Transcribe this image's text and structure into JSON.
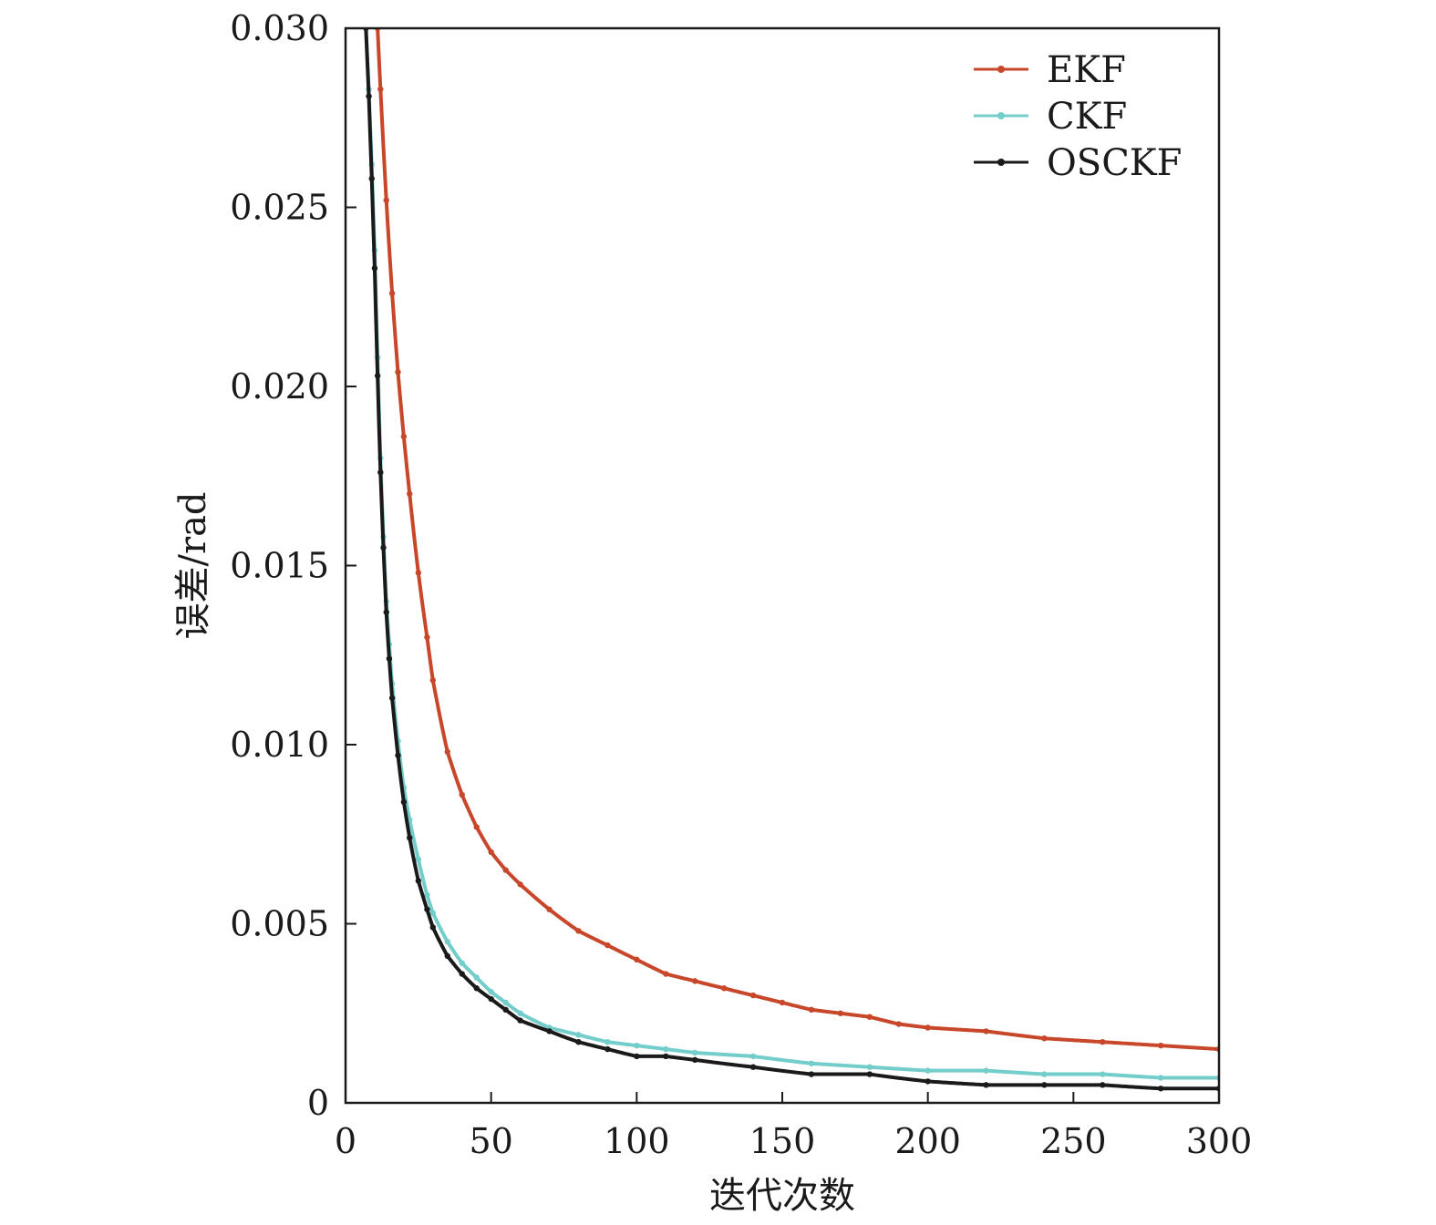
{
  "chart_data": {
    "type": "line",
    "xlabel": "迭代次数",
    "ylabel": "误差/rad",
    "xlim": [
      0,
      300
    ],
    "ylim": [
      0,
      0.03
    ],
    "xticks": [
      0,
      50,
      100,
      150,
      200,
      250,
      300
    ],
    "xtick_labels": [
      "0",
      "50",
      "100",
      "150",
      "200",
      "250",
      "300"
    ],
    "yticks": [
      0,
      0.005,
      0.01,
      0.015,
      0.02,
      0.025,
      0.03
    ],
    "ytick_labels": [
      "0",
      "0.005",
      "0.010",
      "0.015",
      "0.020",
      "0.025",
      "0.030"
    ],
    "grid": false,
    "legend_position": "top-right",
    "series": [
      {
        "name": "EKF",
        "color": "#c8472a",
        "x": [
          11,
          12,
          14,
          16,
          18,
          20,
          22,
          25,
          28,
          30,
          35,
          40,
          45,
          50,
          55,
          60,
          70,
          80,
          90,
          100,
          110,
          120,
          130,
          140,
          150,
          160,
          170,
          180,
          190,
          200,
          220,
          240,
          260,
          280,
          300
        ],
        "y": [
          0.03,
          0.0283,
          0.0252,
          0.0226,
          0.0204,
          0.0186,
          0.017,
          0.0148,
          0.013,
          0.0118,
          0.0098,
          0.0086,
          0.0077,
          0.007,
          0.0065,
          0.0061,
          0.0054,
          0.0048,
          0.0044,
          0.004,
          0.0036,
          0.0034,
          0.0032,
          0.003,
          0.0028,
          0.0026,
          0.0025,
          0.0024,
          0.0022,
          0.0021,
          0.002,
          0.0018,
          0.0017,
          0.0016,
          0.0015
        ]
      },
      {
        "name": "CKF",
        "color": "#72cdcb",
        "x": [
          7,
          8,
          9,
          10,
          11,
          12,
          13,
          14,
          15,
          16,
          18,
          20,
          22,
          25,
          28,
          30,
          35,
          40,
          45,
          50,
          55,
          60,
          70,
          80,
          90,
          100,
          110,
          120,
          140,
          160,
          180,
          200,
          220,
          240,
          260,
          280,
          300
        ],
        "y": [
          0.03,
          0.0283,
          0.0262,
          0.0238,
          0.0208,
          0.018,
          0.0158,
          0.014,
          0.0128,
          0.0117,
          0.0101,
          0.0088,
          0.0079,
          0.0068,
          0.0058,
          0.0053,
          0.0045,
          0.0039,
          0.0035,
          0.0031,
          0.0028,
          0.0025,
          0.0021,
          0.0019,
          0.0017,
          0.0016,
          0.0015,
          0.0014,
          0.0013,
          0.0011,
          0.001,
          0.0009,
          0.0009,
          0.0008,
          0.0008,
          0.0007,
          0.0007
        ]
      },
      {
        "name": "OSCKF",
        "color": "#1a1a1a",
        "x": [
          7,
          8,
          9,
          10,
          11,
          12,
          13,
          14,
          15,
          16,
          18,
          20,
          22,
          25,
          28,
          30,
          35,
          40,
          45,
          50,
          55,
          60,
          70,
          80,
          90,
          100,
          110,
          120,
          140,
          160,
          180,
          200,
          220,
          240,
          260,
          280,
          300
        ],
        "y": [
          0.03,
          0.0281,
          0.0258,
          0.0233,
          0.0203,
          0.0176,
          0.0155,
          0.0137,
          0.0124,
          0.0113,
          0.0097,
          0.0084,
          0.0074,
          0.0062,
          0.0054,
          0.0049,
          0.0041,
          0.0036,
          0.0032,
          0.0029,
          0.0026,
          0.0023,
          0.002,
          0.0017,
          0.0015,
          0.0013,
          0.0013,
          0.0012,
          0.001,
          0.0008,
          0.0008,
          0.0006,
          0.0005,
          0.0005,
          0.0005,
          0.0004,
          0.0004
        ]
      }
    ]
  }
}
